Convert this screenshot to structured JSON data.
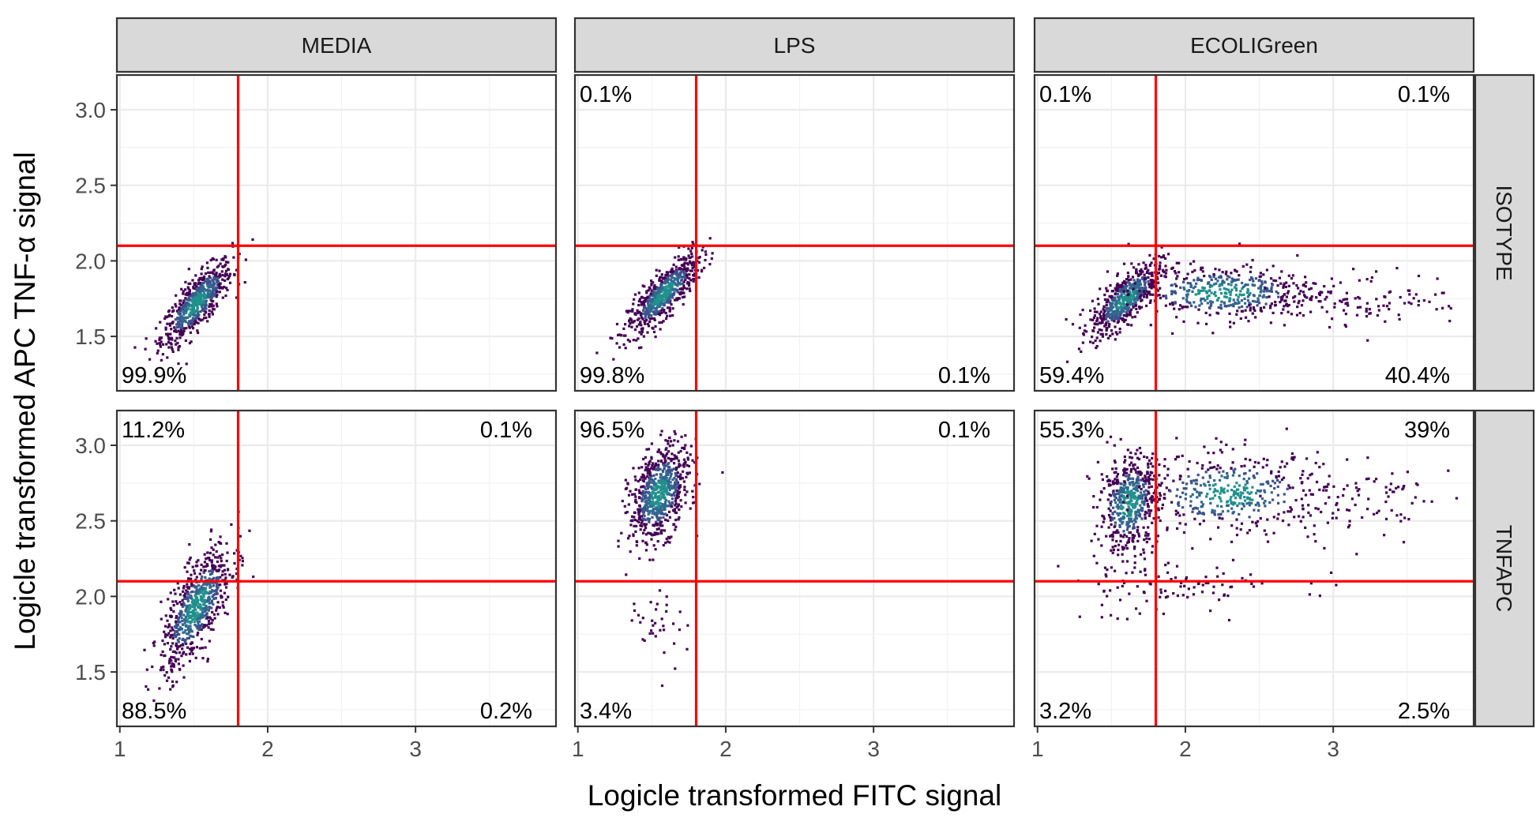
{
  "chart_data": {
    "type": "scatter",
    "xlabel": "Logicle transformed FITC signal",
    "ylabel": "Logicle transformed APC TNF-α signal",
    "xlim": [
      0.98,
      3.95
    ],
    "ylim": [
      1.14,
      3.23
    ],
    "x_ticks": [
      1,
      2,
      3
    ],
    "x_tick_labels": [
      "1",
      "2",
      "3"
    ],
    "y_ticks": [
      1.5,
      2.0,
      2.5,
      3.0
    ],
    "y_tick_labels": [
      "1.5",
      "2.0",
      "2.5",
      "3.0"
    ],
    "grid": true,
    "gate_lines": {
      "x": 1.8,
      "y": 2.1,
      "color": "#ff0000"
    },
    "point_color": "#440154",
    "dense_color": "#21908c",
    "col_facets": [
      "MEDIA",
      "LPS",
      "ECOLIGreen"
    ],
    "row_facets": [
      "ISOTYPE",
      "TNFAPC"
    ],
    "panels": [
      {
        "col": "MEDIA",
        "row": "ISOTYPE",
        "quadrants": {
          "top_left": "",
          "top_right": "",
          "bottom_left": "99.9%",
          "bottom_right": ""
        },
        "clusters": [
          {
            "cx": 1.52,
            "cy": 1.72,
            "sx": 0.12,
            "sy": 0.14,
            "rho": 0.8,
            "n": 650
          }
        ]
      },
      {
        "col": "LPS",
        "row": "ISOTYPE",
        "quadrants": {
          "top_left": "0.1%",
          "top_right": "",
          "bottom_left": "99.8%",
          "bottom_right": "0.1%"
        },
        "clusters": [
          {
            "cx": 1.58,
            "cy": 1.78,
            "sx": 0.12,
            "sy": 0.13,
            "rho": 0.82,
            "n": 650
          }
        ]
      },
      {
        "col": "ECOLIGreen",
        "row": "ISOTYPE",
        "quadrants": {
          "top_left": "0.1%",
          "top_right": "0.1%",
          "bottom_left": "59.4%",
          "bottom_right": "40.4%"
        },
        "clusters": [
          {
            "cx": 1.6,
            "cy": 1.75,
            "sx": 0.12,
            "sy": 0.12,
            "rho": 0.75,
            "n": 600
          },
          {
            "cx": 2.25,
            "cy": 1.79,
            "sx": 0.32,
            "sy": 0.09,
            "rho": 0.0,
            "n": 450
          },
          {
            "cx": 3.2,
            "cy": 1.75,
            "sx": 0.35,
            "sy": 0.09,
            "rho": 0.0,
            "n": 110
          }
        ]
      },
      {
        "col": "MEDIA",
        "row": "TNFAPC",
        "quadrants": {
          "top_left": "11.2%",
          "top_right": "0.1%",
          "bottom_left": "88.5%",
          "bottom_right": "0.2%"
        },
        "clusters": [
          {
            "cx": 1.52,
            "cy": 1.93,
            "sx": 0.12,
            "sy": 0.2,
            "rho": 0.7,
            "n": 700
          }
        ]
      },
      {
        "col": "LPS",
        "row": "TNFAPC",
        "quadrants": {
          "top_left": "96.5%",
          "top_right": "0.1%",
          "bottom_left": "3.4%",
          "bottom_right": ""
        },
        "clusters": [
          {
            "cx": 1.55,
            "cy": 2.68,
            "sx": 0.1,
            "sy": 0.16,
            "rho": 0.4,
            "n": 700
          },
          {
            "cx": 1.55,
            "cy": 1.85,
            "sx": 0.1,
            "sy": 0.15,
            "rho": 0.0,
            "n": 35
          }
        ]
      },
      {
        "col": "ECOLIGreen",
        "row": "TNFAPC",
        "quadrants": {
          "top_left": "55.3%",
          "top_right": "39%",
          "bottom_left": "3.2%",
          "bottom_right": "2.5%"
        },
        "clusters": [
          {
            "cx": 1.62,
            "cy": 2.62,
            "sx": 0.1,
            "sy": 0.16,
            "rho": 0.2,
            "n": 500
          },
          {
            "cx": 2.3,
            "cy": 2.68,
            "sx": 0.32,
            "sy": 0.13,
            "rho": 0.0,
            "n": 420
          },
          {
            "cx": 3.2,
            "cy": 2.62,
            "sx": 0.3,
            "sy": 0.15,
            "rho": 0.0,
            "n": 90
          },
          {
            "cx": 1.7,
            "cy": 2.05,
            "sx": 0.25,
            "sy": 0.1,
            "rho": 0.0,
            "n": 70
          },
          {
            "cx": 2.4,
            "cy": 2.08,
            "sx": 0.4,
            "sy": 0.05,
            "rho": 0.0,
            "n": 35
          }
        ]
      }
    ]
  }
}
